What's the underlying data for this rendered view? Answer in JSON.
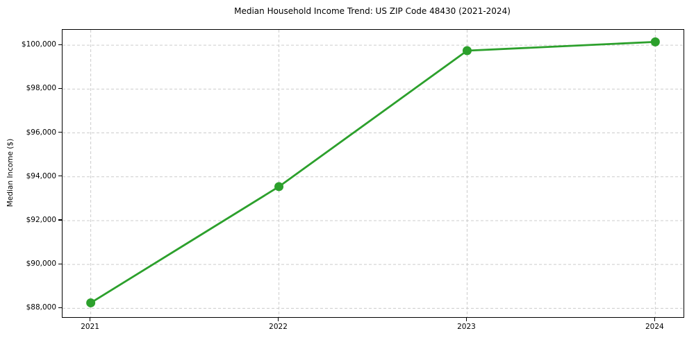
{
  "chart_data": {
    "type": "line",
    "title": "Median Household Income Trend: US ZIP Code 48430 (2021-2024)",
    "xlabel": "",
    "ylabel": "Median Income ($)",
    "x": [
      2021,
      2022,
      2023,
      2024
    ],
    "values": [
      88250,
      93550,
      99750,
      100150
    ],
    "x_tick_labels": [
      "2021",
      "2022",
      "2023",
      "2024"
    ],
    "y_ticks": [
      88000,
      90000,
      92000,
      94000,
      96000,
      98000,
      100000
    ],
    "y_tick_labels": [
      "$88,000",
      "$90,000",
      "$92,000",
      "$94,000",
      "$96,000",
      "$98,000",
      "$100,000"
    ],
    "xlim": [
      2020.85,
      2024.15
    ],
    "ylim": [
      87600,
      100700
    ],
    "grid": true,
    "grid_line_style": "dashed",
    "grid_color": "#cccccc",
    "legend_position": "none",
    "line_color": "#2ca02c",
    "marker": "circle",
    "marker_color": "#2ca02c",
    "spine_color": "#000000",
    "background_color": "#ffffff"
  }
}
